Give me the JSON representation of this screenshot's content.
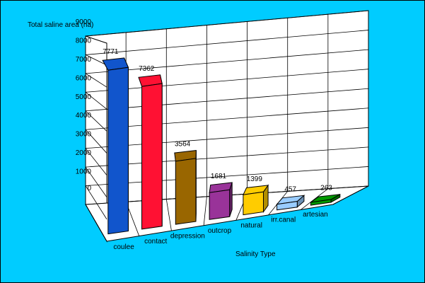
{
  "chart_data": {
    "type": "bar",
    "title": "",
    "ylabel": "Total saline area (ha)",
    "xlabel": "Salinity Type",
    "categories": [
      "coulee",
      "contact",
      "depression",
      "outcrop",
      "natural",
      "irr.canal",
      "artesian"
    ],
    "values": [
      7771,
      7362,
      3564,
      1681,
      1399,
      457,
      263
    ],
    "value_labels": [
      "7771",
      "7362",
      "3564",
      "1681",
      "1399",
      "457",
      "263"
    ],
    "colors": [
      "#1155cc",
      "#ff1133",
      "#996600",
      "#993399",
      "#ffcc00",
      "#99ccff",
      "#009900"
    ],
    "yticks": [
      0,
      1000,
      2000,
      3000,
      4000,
      5000,
      6000,
      7000,
      8000,
      9000
    ],
    "ytick_labels": [
      "0",
      "1000",
      "2000",
      "3000",
      "4000",
      "5000",
      "6000",
      "7000",
      "8000",
      "9000"
    ],
    "ylim": [
      0,
      9000
    ],
    "grid": true,
    "legend": "none",
    "style": "3d"
  }
}
